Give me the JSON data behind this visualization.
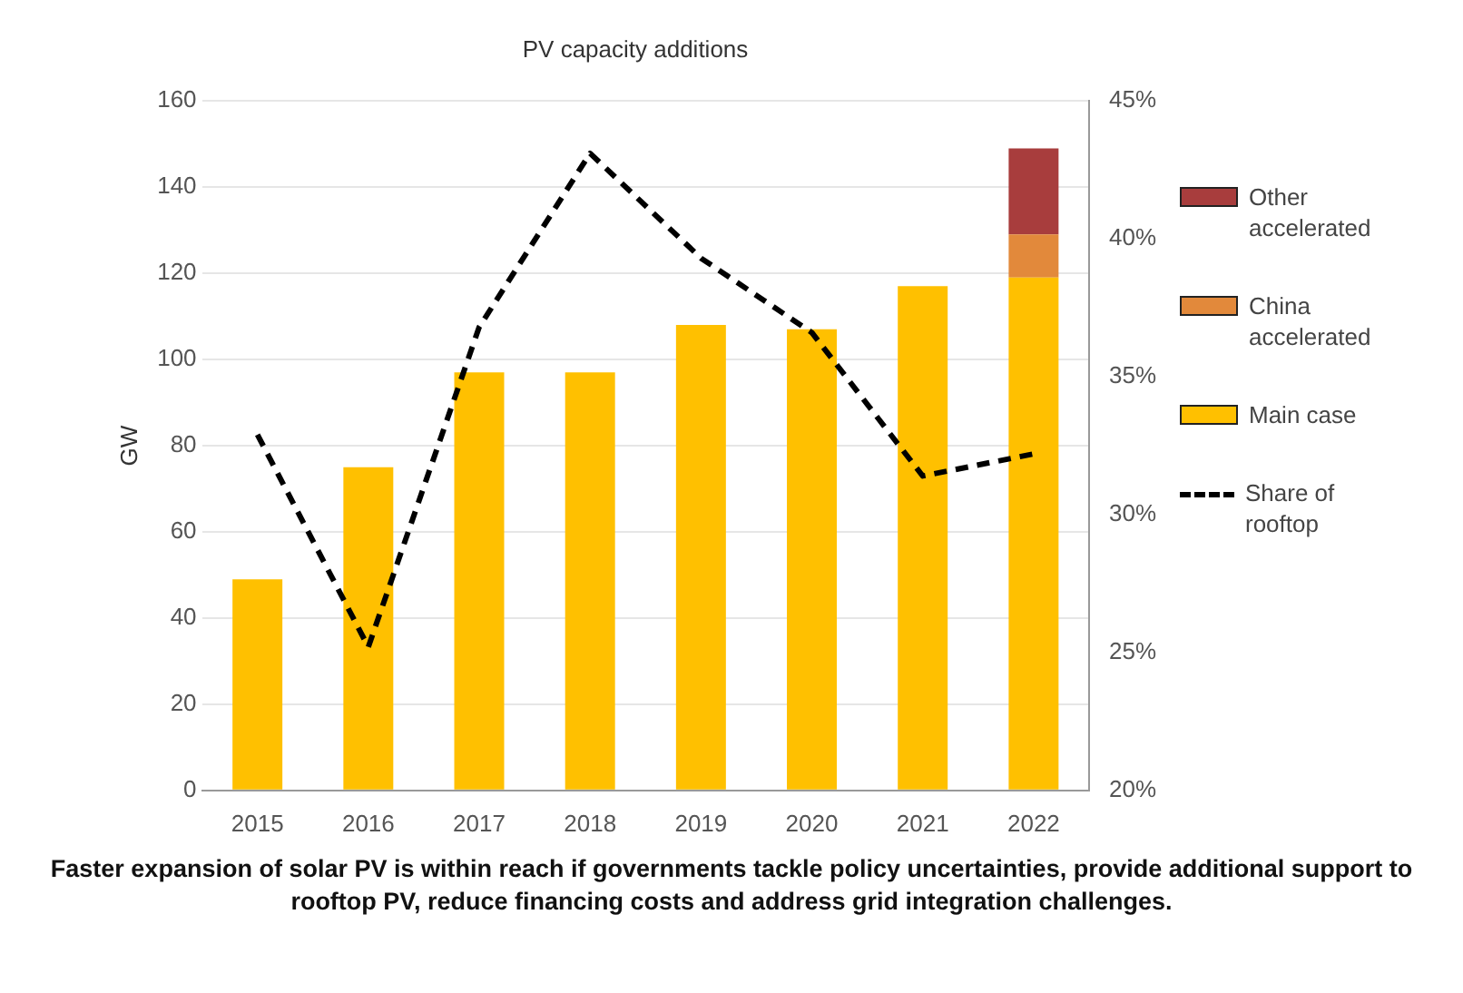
{
  "chart_data": {
    "type": "bar",
    "title": "PV capacity additions",
    "ylabel": "GW",
    "categories": [
      "2015",
      "2016",
      "2017",
      "2018",
      "2019",
      "2020",
      "2021",
      "2022"
    ],
    "stacked": true,
    "series": [
      {
        "name": "Main case",
        "color": "#ffc000",
        "values": [
          49,
          75,
          97,
          97,
          108,
          107,
          117,
          119
        ]
      },
      {
        "name": "China accelerated",
        "color": "#e2893b",
        "values": [
          null,
          null,
          null,
          null,
          null,
          null,
          null,
          10
        ]
      },
      {
        "name": "Other accelerated",
        "color": "#a83d3d",
        "values": [
          null,
          null,
          null,
          null,
          null,
          null,
          null,
          20
        ]
      },
      {
        "name": "Share of rooftop",
        "type": "line",
        "axis": "y2",
        "color": "#000000",
        "line_style": "dashed",
        "marker": "none",
        "values": [
          32.9,
          25.2,
          36.8,
          43.1,
          39.3,
          36.6,
          31.4,
          32.2
        ]
      }
    ],
    "ylim": [
      0,
      160
    ],
    "yticks": [
      0,
      20,
      40,
      60,
      80,
      100,
      120,
      140,
      160
    ],
    "y2lim": [
      20,
      45
    ],
    "y2ticks": [
      {
        "value": 20,
        "label": "20%"
      },
      {
        "value": 25,
        "label": "25%"
      },
      {
        "value": 30,
        "label": "30%"
      },
      {
        "value": 35,
        "label": "35%"
      },
      {
        "value": 40,
        "label": "40%"
      },
      {
        "value": 45,
        "label": "45%"
      }
    ],
    "grid": "y",
    "legend": "right",
    "annotations": [
      "Faster expansion of solar PV is within reach if governments tackle policy uncertainties, provide additional support to rooftop PV, reduce financing costs and address grid integration challenges."
    ]
  }
}
